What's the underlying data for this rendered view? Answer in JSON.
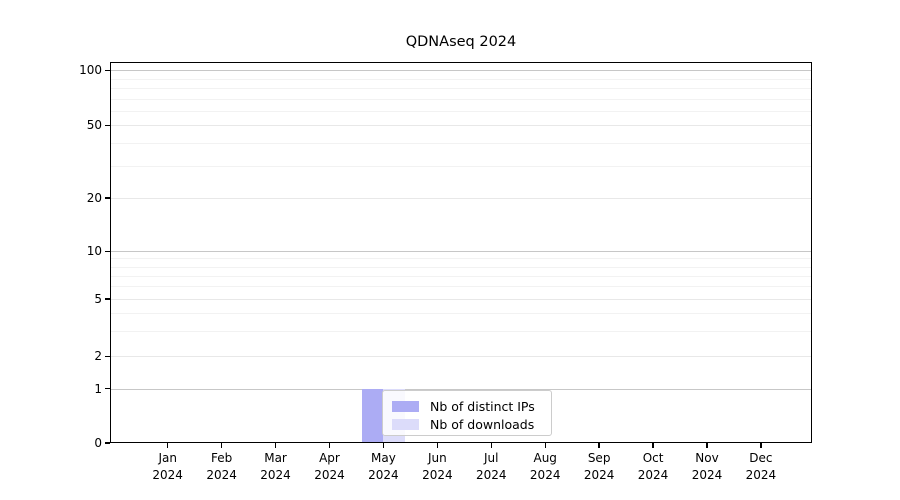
{
  "title": "QDNAseq 2024",
  "chart_data": {
    "type": "bar",
    "title": "QDNAseq 2024",
    "months": [
      "Jan",
      "Feb",
      "Mar",
      "Apr",
      "May",
      "Jun",
      "Jul",
      "Aug",
      "Sep",
      "Oct",
      "Nov",
      "Dec"
    ],
    "year": "2024",
    "series": [
      {
        "name": "Nb of distinct IPs",
        "color": "#acacf4",
        "values": [
          0,
          0,
          0,
          0,
          1,
          0,
          0,
          0,
          0,
          0,
          0,
          0
        ]
      },
      {
        "name": "Nb of downloads",
        "color": "#dcdcfa",
        "values": [
          0,
          0,
          0,
          0,
          1,
          0,
          0,
          0,
          0,
          0,
          0,
          0
        ]
      }
    ],
    "y_ticks": [
      0,
      1,
      2,
      5,
      10,
      20,
      50,
      100
    ],
    "y_minor_gridlines": [
      3,
      4,
      6,
      7,
      8,
      9,
      30,
      40,
      60,
      70,
      80,
      90
    ],
    "y_scale": "log-like (0 plus compressed log decades)",
    "ylim": [
      0,
      107
    ],
    "grid": "horizontal-only",
    "gridline_colors": {
      "power_of_ten": "#c7c7c7",
      "labeled": "#e8e8e8",
      "minor": "#f2f2f2"
    },
    "legend": {
      "position": "inside-lower-center",
      "items": [
        {
          "label": "Nb of distinct IPs",
          "color": "#acacf4"
        },
        {
          "label": "Nb of downloads",
          "color": "#dcdcfa"
        }
      ]
    }
  }
}
